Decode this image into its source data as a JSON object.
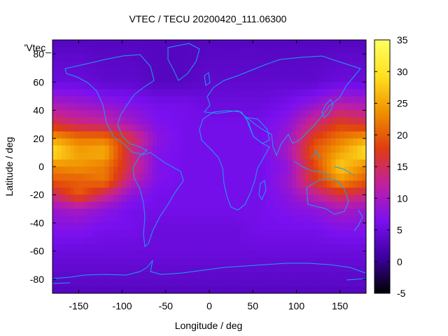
{
  "chart_data": {
    "type": "heatmap",
    "title": "VTEC / TECU 20200420_111.06300",
    "xlabel": "Longitude / deg",
    "ylabel": "Latitude / deg",
    "key_label": "'Vtec_",
    "xlim": [
      -180,
      180
    ],
    "ylim": [
      -90,
      90
    ],
    "color_range": [
      -5,
      35
    ],
    "x_ticks": [
      -150,
      -100,
      -50,
      0,
      50,
      100,
      150
    ],
    "y_ticks": [
      80,
      60,
      40,
      20,
      0,
      -20,
      -40,
      -60,
      -80
    ],
    "colorbar_ticks": [
      35,
      30,
      25,
      20,
      15,
      10,
      5,
      0,
      -5
    ],
    "grid": false,
    "colormap": [
      "#000000",
      "#3d00a0",
      "#7a10f0",
      "#c020a0",
      "#e03c10",
      "#f09000",
      "#ffe020",
      "#ffff60"
    ],
    "coastline_color": "#1ba0f0",
    "x": [
      -180,
      -150,
      -120,
      -90,
      -60,
      -30,
      0,
      30,
      60,
      90,
      120,
      150,
      180
    ],
    "y": [
      90,
      60,
      45,
      30,
      20,
      10,
      0,
      -10,
      -20,
      -30,
      -45,
      -60,
      -75,
      -90
    ],
    "z": [
      [
        3,
        3,
        3,
        3,
        3,
        3,
        3,
        3,
        3,
        3,
        3,
        3,
        3
      ],
      [
        5,
        5,
        4,
        4,
        3,
        3,
        4,
        4,
        4,
        4,
        4,
        5,
        5
      ],
      [
        10,
        9,
        8,
        7,
        6,
        6,
        5,
        5,
        5,
        6,
        8,
        11,
        10
      ],
      [
        16,
        14,
        13,
        10,
        7,
        6,
        6,
        6,
        6,
        8,
        14,
        18,
        16
      ],
      [
        25,
        22,
        22,
        16,
        8,
        6,
        6,
        6,
        6,
        9,
        18,
        22,
        25
      ],
      [
        30,
        25,
        26,
        14,
        7,
        6,
        6,
        6,
        6,
        10,
        20,
        25,
        30
      ],
      [
        23,
        24,
        22,
        15,
        7,
        6,
        6,
        6,
        6,
        8,
        18,
        28,
        23
      ],
      [
        20,
        20,
        22,
        12,
        7,
        6,
        6,
        6,
        6,
        9,
        17,
        24,
        20
      ],
      [
        14,
        20,
        14,
        8,
        6,
        6,
        6,
        6,
        6,
        8,
        12,
        16,
        14
      ],
      [
        9,
        10,
        8,
        6,
        6,
        6,
        6,
        6,
        6,
        7,
        8,
        10,
        9
      ],
      [
        7,
        7,
        6,
        6,
        5,
        5,
        5,
        5,
        6,
        6,
        6,
        7,
        7
      ],
      [
        5,
        5,
        5,
        5,
        5,
        5,
        5,
        5,
        5,
        5,
        5,
        5,
        5
      ],
      [
        4,
        4,
        4,
        4,
        4,
        4,
        4,
        4,
        4,
        4,
        4,
        4,
        4
      ],
      [
        3,
        3,
        3,
        3,
        3,
        3,
        3,
        3,
        3,
        3,
        3,
        3,
        3
      ]
    ]
  }
}
